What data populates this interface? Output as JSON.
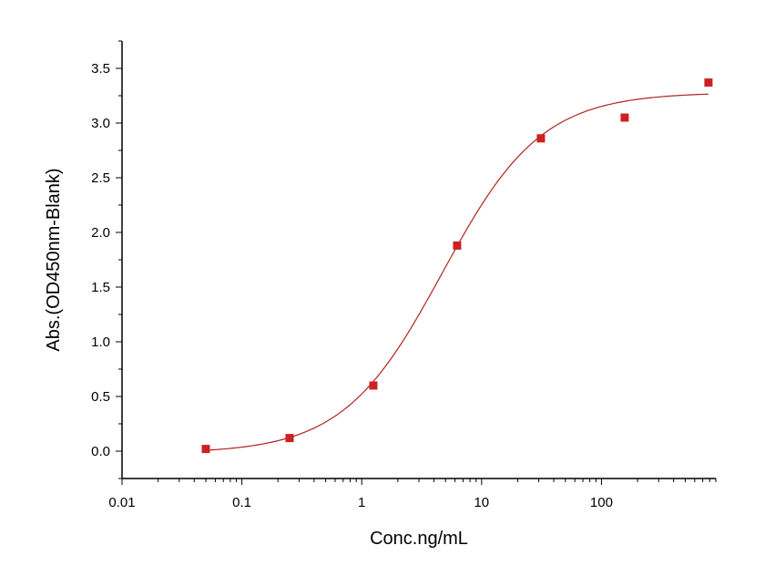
{
  "chart_data": {
    "type": "scatter",
    "xscale": "log",
    "xlabel": "Conc.ng/mL",
    "ylabel": "Abs.(OD450nm-Blank)",
    "xlim": [
      0.01,
      900
    ],
    "ylim": [
      -0.25,
      3.75
    ],
    "x_ticks": [
      0.01,
      0.1,
      1,
      10,
      100
    ],
    "x_tick_labels": [
      "0.01",
      "0.1",
      "1",
      "10",
      "100"
    ],
    "y_ticks": [
      0,
      0.5,
      1,
      1.5,
      2,
      2.5,
      3,
      3.5
    ],
    "y_tick_labels": [
      "0.0",
      "0.5",
      "1.0",
      "1.5",
      "2.0",
      "2.5",
      "3.0",
      "3.5"
    ],
    "series": [
      {
        "marker": "square",
        "color": "#cc2222",
        "points": [
          {
            "x": 0.05,
            "y": 0.02
          },
          {
            "x": 0.25,
            "y": 0.12
          },
          {
            "x": 1.25,
            "y": 0.6
          },
          {
            "x": 6.25,
            "y": 1.88
          },
          {
            "x": 31.25,
            "y": 2.86
          },
          {
            "x": 156.25,
            "y": 3.05
          },
          {
            "x": 781.25,
            "y": 3.37
          }
        ]
      }
    ],
    "fit_curve": {
      "model": "4PL",
      "color": "#b22222",
      "bottom": -0.02,
      "top": 3.28,
      "ec50": 4.7,
      "hill": 1.05,
      "x_range": [
        0.05,
        781.25
      ]
    },
    "grid": false,
    "legend": "none"
  }
}
